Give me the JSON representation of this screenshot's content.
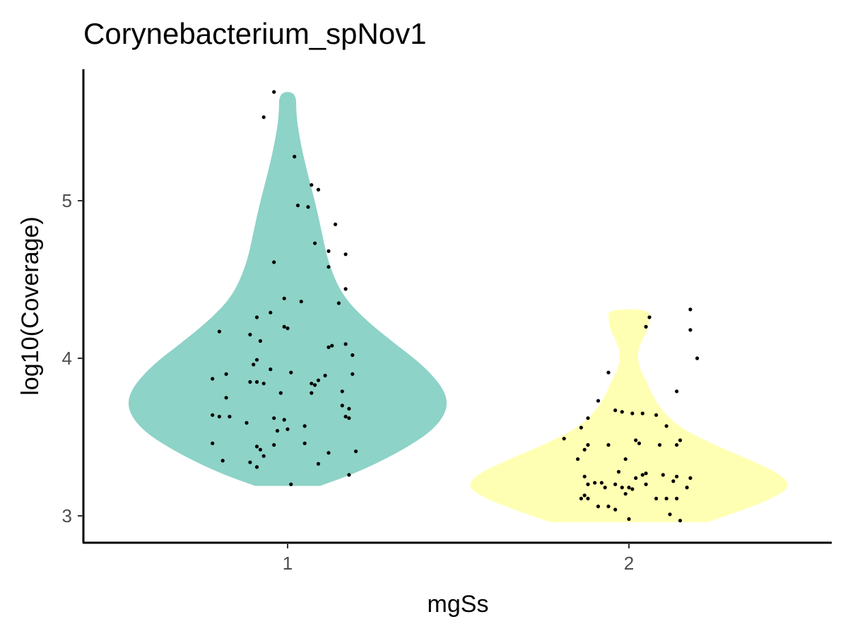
{
  "chart_data": {
    "type": "violin",
    "title": "Corynebacterium_spNov1",
    "xlabel": "mgSs",
    "ylabel": "log10(Coverage)",
    "categories": [
      "1",
      "2"
    ],
    "yticks": [
      3,
      4,
      5
    ],
    "ylim": [
      2.83,
      5.83
    ],
    "grid": false,
    "legend": "none",
    "colors": {
      "1": "#8ed3c7",
      "2": "#ffffb3",
      "points": "#000000",
      "axis": "#000000"
    },
    "groups": [
      {
        "category": "1",
        "ymin": 3.19,
        "ymax": 5.69,
        "density_profile": [
          {
            "y": 3.19,
            "w": 0.19
          },
          {
            "y": 3.28,
            "w": 0.42
          },
          {
            "y": 3.42,
            "w": 0.68
          },
          {
            "y": 3.55,
            "w": 0.86
          },
          {
            "y": 3.68,
            "w": 0.94
          },
          {
            "y": 3.8,
            "w": 0.92
          },
          {
            "y": 3.95,
            "w": 0.8
          },
          {
            "y": 4.1,
            "w": 0.62
          },
          {
            "y": 4.25,
            "w": 0.45
          },
          {
            "y": 4.4,
            "w": 0.32
          },
          {
            "y": 4.6,
            "w": 0.24
          },
          {
            "y": 4.8,
            "w": 0.2
          },
          {
            "y": 5.0,
            "w": 0.16
          },
          {
            "y": 5.2,
            "w": 0.11
          },
          {
            "y": 5.4,
            "w": 0.07
          },
          {
            "y": 5.55,
            "w": 0.05
          },
          {
            "y": 5.69,
            "w": 0.05
          }
        ],
        "points": [
          {
            "x": 0.96,
            "y": 5.69
          },
          {
            "x": 0.93,
            "y": 5.53
          },
          {
            "x": 1.02,
            "y": 5.28
          },
          {
            "x": 1.07,
            "y": 5.1
          },
          {
            "x": 1.09,
            "y": 5.07
          },
          {
            "x": 1.03,
            "y": 4.97
          },
          {
            "x": 1.06,
            "y": 4.96
          },
          {
            "x": 1.14,
            "y": 4.85
          },
          {
            "x": 1.08,
            "y": 4.73
          },
          {
            "x": 1.12,
            "y": 4.68
          },
          {
            "x": 1.17,
            "y": 4.66
          },
          {
            "x": 0.96,
            "y": 4.61
          },
          {
            "x": 1.12,
            "y": 4.58
          },
          {
            "x": 1.17,
            "y": 4.44
          },
          {
            "x": 0.99,
            "y": 4.38
          },
          {
            "x": 1.04,
            "y": 4.36
          },
          {
            "x": 1.15,
            "y": 4.35
          },
          {
            "x": 0.95,
            "y": 4.29
          },
          {
            "x": 0.91,
            "y": 4.26
          },
          {
            "x": 0.99,
            "y": 4.2
          },
          {
            "x": 1.0,
            "y": 4.19
          },
          {
            "x": 0.8,
            "y": 4.17
          },
          {
            "x": 0.89,
            "y": 4.15
          },
          {
            "x": 0.92,
            "y": 4.11
          },
          {
            "x": 1.17,
            "y": 4.09
          },
          {
            "x": 1.13,
            "y": 4.08
          },
          {
            "x": 1.12,
            "y": 4.07
          },
          {
            "x": 1.19,
            "y": 4.02
          },
          {
            "x": 0.91,
            "y": 3.99
          },
          {
            "x": 0.9,
            "y": 3.96
          },
          {
            "x": 0.95,
            "y": 3.93
          },
          {
            "x": 1.01,
            "y": 3.91
          },
          {
            "x": 0.82,
            "y": 3.9
          },
          {
            "x": 1.19,
            "y": 3.9
          },
          {
            "x": 1.11,
            "y": 3.89
          },
          {
            "x": 0.78,
            "y": 3.87
          },
          {
            "x": 1.09,
            "y": 3.86
          },
          {
            "x": 0.89,
            "y": 3.85
          },
          {
            "x": 0.91,
            "y": 3.85
          },
          {
            "x": 0.93,
            "y": 3.84
          },
          {
            "x": 1.07,
            "y": 3.84
          },
          {
            "x": 1.08,
            "y": 3.83
          },
          {
            "x": 1.16,
            "y": 3.79
          },
          {
            "x": 0.98,
            "y": 3.78
          },
          {
            "x": 1.07,
            "y": 3.78
          },
          {
            "x": 0.82,
            "y": 3.75
          },
          {
            "x": 1.16,
            "y": 3.7
          },
          {
            "x": 1.18,
            "y": 3.68
          },
          {
            "x": 0.78,
            "y": 3.64
          },
          {
            "x": 0.8,
            "y": 3.63
          },
          {
            "x": 0.83,
            "y": 3.63
          },
          {
            "x": 1.17,
            "y": 3.63
          },
          {
            "x": 1.18,
            "y": 3.62
          },
          {
            "x": 0.96,
            "y": 3.62
          },
          {
            "x": 0.99,
            "y": 3.61
          },
          {
            "x": 0.88,
            "y": 3.59
          },
          {
            "x": 1.05,
            "y": 3.57
          },
          {
            "x": 1.0,
            "y": 3.55
          },
          {
            "x": 0.97,
            "y": 3.54
          },
          {
            "x": 0.78,
            "y": 3.46
          },
          {
            "x": 1.05,
            "y": 3.46
          },
          {
            "x": 0.96,
            "y": 3.45
          },
          {
            "x": 0.91,
            "y": 3.44
          },
          {
            "x": 0.92,
            "y": 3.42
          },
          {
            "x": 1.2,
            "y": 3.41
          },
          {
            "x": 1.12,
            "y": 3.4
          },
          {
            "x": 0.93,
            "y": 3.38
          },
          {
            "x": 0.81,
            "y": 3.35
          },
          {
            "x": 0.89,
            "y": 3.34
          },
          {
            "x": 1.09,
            "y": 3.33
          },
          {
            "x": 0.91,
            "y": 3.31
          },
          {
            "x": 1.18,
            "y": 3.26
          },
          {
            "x": 1.01,
            "y": 3.2
          }
        ]
      },
      {
        "category": "2",
        "ymin": 2.96,
        "ymax": 4.31,
        "density_profile": [
          {
            "y": 2.96,
            "w": 0.46
          },
          {
            "y": 3.05,
            "w": 0.7
          },
          {
            "y": 3.12,
            "w": 0.86
          },
          {
            "y": 3.19,
            "w": 0.95
          },
          {
            "y": 3.27,
            "w": 0.88
          },
          {
            "y": 3.36,
            "w": 0.7
          },
          {
            "y": 3.46,
            "w": 0.48
          },
          {
            "y": 3.56,
            "w": 0.3
          },
          {
            "y": 3.66,
            "w": 0.2
          },
          {
            "y": 3.76,
            "w": 0.14
          },
          {
            "y": 3.86,
            "w": 0.1
          },
          {
            "y": 3.94,
            "w": 0.06
          },
          {
            "y": 4.03,
            "w": 0.05
          },
          {
            "y": 4.1,
            "w": 0.07
          },
          {
            "y": 4.18,
            "w": 0.11
          },
          {
            "y": 4.25,
            "w": 0.12
          },
          {
            "y": 4.31,
            "w": 0.12
          }
        ],
        "points": [
          {
            "x": 2.18,
            "y": 4.31
          },
          {
            "x": 2.06,
            "y": 4.26
          },
          {
            "x": 2.05,
            "y": 4.2
          },
          {
            "x": 2.18,
            "y": 4.18
          },
          {
            "x": 2.2,
            "y": 4.0
          },
          {
            "x": 1.94,
            "y": 3.91
          },
          {
            "x": 2.14,
            "y": 3.79
          },
          {
            "x": 1.91,
            "y": 3.73
          },
          {
            "x": 1.96,
            "y": 3.67
          },
          {
            "x": 1.98,
            "y": 3.66
          },
          {
            "x": 2.01,
            "y": 3.65
          },
          {
            "x": 2.04,
            "y": 3.65
          },
          {
            "x": 2.08,
            "y": 3.64
          },
          {
            "x": 1.88,
            "y": 3.62
          },
          {
            "x": 2.11,
            "y": 3.57
          },
          {
            "x": 1.86,
            "y": 3.56
          },
          {
            "x": 1.81,
            "y": 3.49
          },
          {
            "x": 2.02,
            "y": 3.48
          },
          {
            "x": 2.15,
            "y": 3.48
          },
          {
            "x": 2.03,
            "y": 3.46
          },
          {
            "x": 1.88,
            "y": 3.45
          },
          {
            "x": 1.94,
            "y": 3.45
          },
          {
            "x": 2.09,
            "y": 3.45
          },
          {
            "x": 2.14,
            "y": 3.45
          },
          {
            "x": 1.87,
            "y": 3.42
          },
          {
            "x": 1.85,
            "y": 3.36
          },
          {
            "x": 1.99,
            "y": 3.36
          },
          {
            "x": 1.97,
            "y": 3.28
          },
          {
            "x": 2.05,
            "y": 3.27
          },
          {
            "x": 2.04,
            "y": 3.26
          },
          {
            "x": 2.1,
            "y": 3.26
          },
          {
            "x": 2.14,
            "y": 3.25
          },
          {
            "x": 1.87,
            "y": 3.25
          },
          {
            "x": 2.02,
            "y": 3.24
          },
          {
            "x": 2.18,
            "y": 3.24
          },
          {
            "x": 2.13,
            "y": 3.22
          },
          {
            "x": 1.9,
            "y": 3.21
          },
          {
            "x": 1.92,
            "y": 3.21
          },
          {
            "x": 1.96,
            "y": 3.2
          },
          {
            "x": 1.88,
            "y": 3.2
          },
          {
            "x": 2.05,
            "y": 3.2
          },
          {
            "x": 1.98,
            "y": 3.18
          },
          {
            "x": 2.0,
            "y": 3.18
          },
          {
            "x": 2.17,
            "y": 3.18
          },
          {
            "x": 1.93,
            "y": 3.18
          },
          {
            "x": 2.01,
            "y": 3.17
          },
          {
            "x": 1.99,
            "y": 3.14
          },
          {
            "x": 1.87,
            "y": 3.13
          },
          {
            "x": 1.86,
            "y": 3.11
          },
          {
            "x": 1.88,
            "y": 3.11
          },
          {
            "x": 2.08,
            "y": 3.11
          },
          {
            "x": 2.11,
            "y": 3.11
          },
          {
            "x": 2.14,
            "y": 3.11
          },
          {
            "x": 1.91,
            "y": 3.06
          },
          {
            "x": 1.94,
            "y": 3.06
          },
          {
            "x": 1.96,
            "y": 3.04
          },
          {
            "x": 2.12,
            "y": 3.01
          },
          {
            "x": 2.0,
            "y": 2.98
          },
          {
            "x": 2.15,
            "y": 2.97
          }
        ]
      }
    ]
  }
}
